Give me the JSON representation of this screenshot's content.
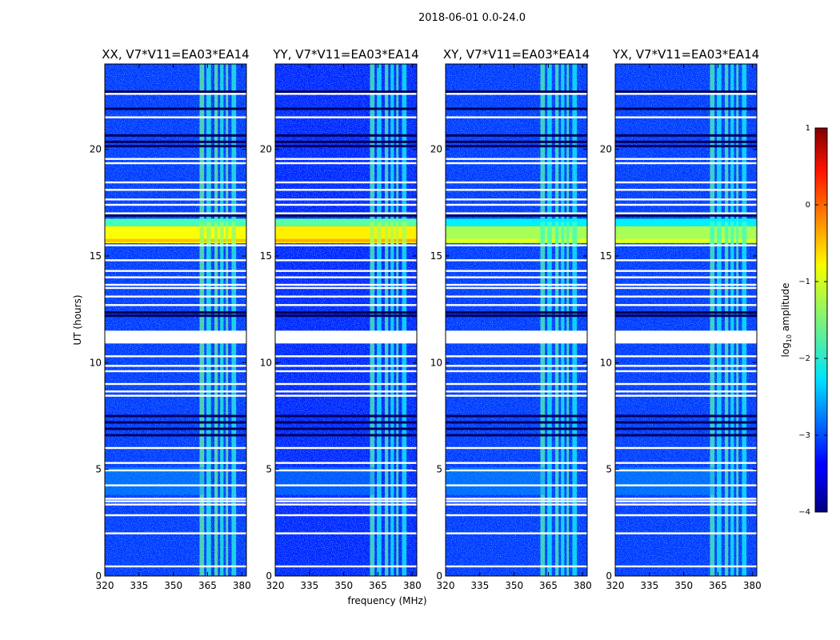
{
  "figure_title": "2018-06-01 0.0-24.0",
  "chart_data": {
    "type": "heatmap",
    "panels": [
      {
        "title": "XX, V7*V11=EA03*EA14",
        "noise_floor_log": -3.1,
        "rfi_band_log": -1.7,
        "burst_level_log": -0.9
      },
      {
        "title": "YY, V7*V11=EA03*EA14",
        "noise_floor_log": -3.2,
        "rfi_band_log": -1.8,
        "burst_level_log": -0.8
      },
      {
        "title": "XY, V7*V11=EA03*EA14",
        "noise_floor_log": -3.1,
        "rfi_band_log": -1.8,
        "burst_level_log": -1.3
      },
      {
        "title": "YX, V7*V11=EA03*EA14",
        "noise_floor_log": -3.1,
        "rfi_band_log": -1.8,
        "burst_level_log": -1.3
      }
    ],
    "xlabel": "frequency (MHz)",
    "ylabel": "UT (hours)",
    "xlim": [
      320,
      382
    ],
    "ylim": [
      0,
      24
    ],
    "xticks": [
      "320",
      "335",
      "350",
      "365",
      "380"
    ],
    "yticks": [
      "0",
      "5",
      "10",
      "15",
      "20"
    ],
    "rfi_band_mhz": [
      361,
      378
    ],
    "broadband_event_hours": [
      15.6,
      16.4
    ],
    "flagged_gap_hours": [
      10.9,
      11.5
    ],
    "colorbar": {
      "label": "log10 amplitude",
      "label_main": "log",
      "label_sub": "10",
      "label_suffix": " amplitude",
      "range": [
        -4,
        1
      ],
      "ticks": [
        "1",
        "0",
        "−1",
        "−2",
        "−3",
        "−4"
      ],
      "colormap": "jet"
    }
  }
}
